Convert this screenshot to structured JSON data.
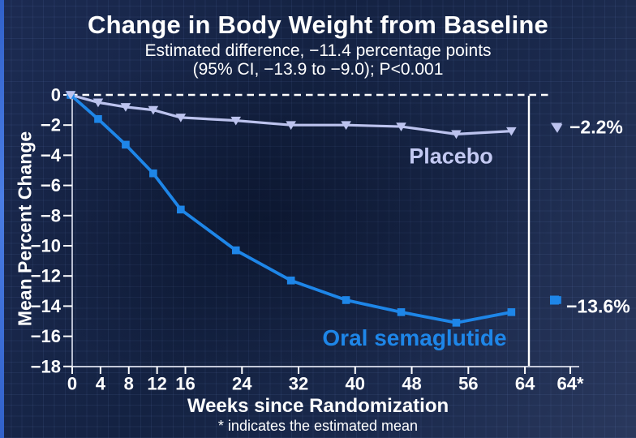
{
  "chart_data": {
    "type": "line",
    "title": "Change in Body Weight from Baseline",
    "subtitle_line1": "Estimated difference, −11.4 percentage points",
    "subtitle_line2": "(95% CI, −13.9 to −9.0); P<0.001",
    "xlabel": "Weeks since Randomization",
    "ylabel": "Mean Percent Change",
    "footnote": "* indicates the estimated mean",
    "x": [
      0,
      4,
      8,
      12,
      16,
      24,
      32,
      40,
      48,
      56,
      64
    ],
    "x_tick_labels": [
      "0",
      "4",
      "8",
      "12",
      "16",
      "24",
      "32",
      "40",
      "48",
      "56",
      "64",
      "64*"
    ],
    "y_ticks": [
      0,
      -2,
      -4,
      -6,
      -8,
      -10,
      -12,
      -14,
      -16,
      -18
    ],
    "ylim": [
      -18,
      0.5
    ],
    "xlim_weeks": [
      0,
      64
    ],
    "legend_position": "inline-labels",
    "grid": "faint background grid only",
    "reference_line_y": 0,
    "divider_at_week": 64,
    "series": [
      {
        "name": "Oral semaglutide",
        "color": "#1e86e8",
        "marker": "square",
        "values": [
          0,
          -1.6,
          -3.3,
          -5.2,
          -7.6,
          -10.3,
          -12.3,
          -13.6,
          -14.4,
          -15.1,
          -14.4
        ],
        "estimated_mean_week64": -13.6,
        "end_annotation": "−13.6%"
      },
      {
        "name": "Placebo",
        "color": "#bcc3ee",
        "marker": "triangle-down",
        "values": [
          0,
          -0.5,
          -0.8,
          -1.0,
          -1.5,
          -1.7,
          -2.0,
          -2.0,
          -2.1,
          -2.6,
          -2.4
        ],
        "estimated_mean_week64": -2.2,
        "end_annotation": "−2.2%"
      }
    ]
  },
  "colors": {
    "background_top": "#16234a",
    "background_bottom": "#2e3c61",
    "accent_bar": "#3e72dd",
    "axis_line": "#b7bdd0",
    "tick_and_text": "#ffffff",
    "semaglutide": "#1e86e8",
    "placebo": "#bcc3ee"
  }
}
